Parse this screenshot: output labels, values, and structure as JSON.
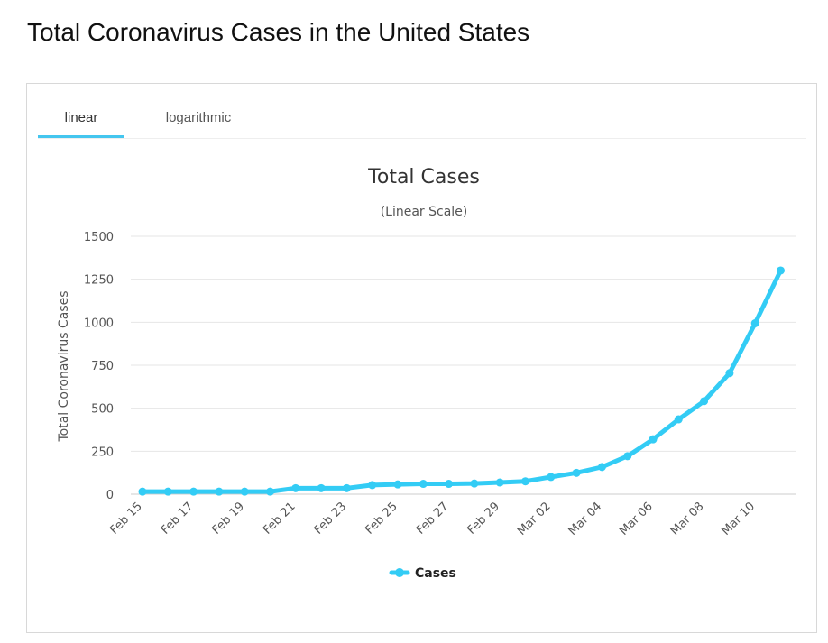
{
  "page": {
    "title": "Total Coronavirus Cases in the United States"
  },
  "tabs": [
    {
      "label": "linear",
      "active": true
    },
    {
      "label": "logarithmic",
      "active": false
    }
  ],
  "colors": {
    "accent": "#44c6ef",
    "series": "#33ccf5",
    "grid": "#e6e6e6"
  },
  "chart_data": {
    "type": "line",
    "title": "Total Cases",
    "subtitle": "(Linear Scale)",
    "ylabel": "Total Coronavirus Cases",
    "xlabel": "",
    "ylim": [
      0,
      1500
    ],
    "y_ticks": [
      0,
      250,
      500,
      750,
      1000,
      1250,
      1500
    ],
    "x": [
      "Feb 15",
      "Feb 16",
      "Feb 17",
      "Feb 18",
      "Feb 19",
      "Feb 20",
      "Feb 21",
      "Feb 22",
      "Feb 23",
      "Feb 24",
      "Feb 25",
      "Feb 26",
      "Feb 27",
      "Feb 28",
      "Feb 29",
      "Mar 01",
      "Mar 02",
      "Mar 03",
      "Mar 04",
      "Mar 05",
      "Mar 06",
      "Mar 07",
      "Mar 08",
      "Mar 09",
      "Mar 10",
      "Mar 11"
    ],
    "x_tick_labels": [
      "Feb 15",
      "Feb 17",
      "Feb 19",
      "Feb 21",
      "Feb 23",
      "Feb 25",
      "Feb 27",
      "Feb 29",
      "Mar 02",
      "Mar 04",
      "Mar 06",
      "Mar 08",
      "Mar 10"
    ],
    "series": [
      {
        "name": "Cases",
        "values": [
          15,
          15,
          15,
          15,
          15,
          15,
          35,
          35,
          35,
          53,
          57,
          60,
          60,
          62,
          68,
          75,
          100,
          124,
          158,
          221,
          319,
          435,
          541,
          704,
          994,
          1301
        ]
      }
    ],
    "grid": true,
    "legend": "bottom-center"
  }
}
